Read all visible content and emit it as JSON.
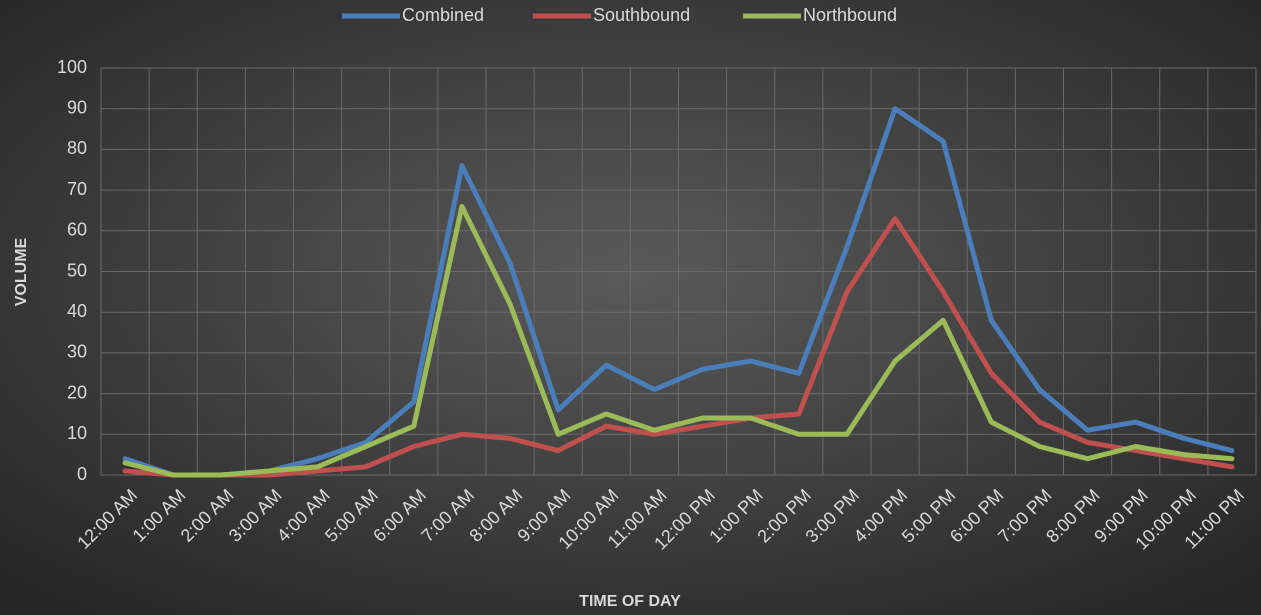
{
  "chart_data": {
    "type": "line",
    "x_label": "TIME OF DAY",
    "y_label": "VOLUME",
    "categories": [
      "12:00 AM",
      "1:00 AM",
      "2:00 AM",
      "3:00 AM",
      "4:00 AM",
      "5:00 AM",
      "6:00 AM",
      "7:00 AM",
      "8:00 AM",
      "9:00 AM",
      "10:00 AM",
      "11:00 AM",
      "12:00 PM",
      "1:00 PM",
      "2:00 PM",
      "3:00 PM",
      "4:00 PM",
      "5:00 PM",
      "6:00 PM",
      "7:00 PM",
      "8:00 PM",
      "9:00 PM",
      "10:00 PM",
      "11:00 PM"
    ],
    "series": [
      {
        "name": "Combined",
        "color": "#4a7ebb",
        "values": [
          4,
          0,
          0,
          1,
          4,
          8,
          18,
          76,
          52,
          16,
          27,
          21,
          26,
          28,
          25,
          56,
          90,
          82,
          38,
          21,
          11,
          13,
          9,
          6
        ]
      },
      {
        "name": "Southbound",
        "color": "#c0504d",
        "values": [
          1,
          0,
          0,
          0,
          1,
          2,
          7,
          10,
          9,
          6,
          12,
          10,
          12,
          14,
          15,
          45,
          63,
          45,
          25,
          13,
          8,
          6,
          4,
          2
        ]
      },
      {
        "name": "Northbound",
        "color": "#9bbb59",
        "values": [
          3,
          0,
          0,
          1,
          2,
          7,
          12,
          66,
          42,
          10,
          15,
          11,
          14,
          14,
          10,
          10,
          28,
          38,
          13,
          7,
          4,
          7,
          5,
          4
        ]
      }
    ],
    "ylim": [
      0,
      100
    ],
    "yticks": [
      0,
      10,
      20,
      30,
      40,
      50,
      60,
      70,
      80,
      90,
      100
    ],
    "grid": true,
    "legend": "top"
  }
}
